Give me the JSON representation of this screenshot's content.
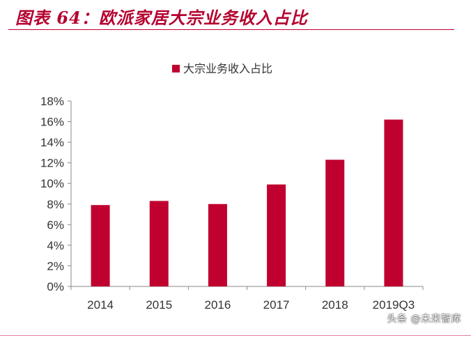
{
  "header": {
    "title": "图表 64：欧派家居大宗业务收入占比"
  },
  "watermark": "头条 @未来智库",
  "colors": {
    "accent": "#b5002f",
    "bar": "#c0002f",
    "axis": "#888888",
    "text": "#333333"
  },
  "chart_data": {
    "type": "bar",
    "categories": [
      "2014",
      "2015",
      "2016",
      "2017",
      "2018",
      "2019Q3"
    ],
    "series": [
      {
        "name": "大宗业务收入占比",
        "values": [
          7.9,
          8.3,
          8.0,
          9.9,
          12.3,
          16.2
        ]
      }
    ],
    "ylim": [
      0,
      18
    ],
    "yticks": [
      "0%",
      "2%",
      "4%",
      "6%",
      "8%",
      "10%",
      "12%",
      "14%",
      "16%",
      "18%"
    ],
    "grid": false,
    "legend_position": "top-center"
  }
}
